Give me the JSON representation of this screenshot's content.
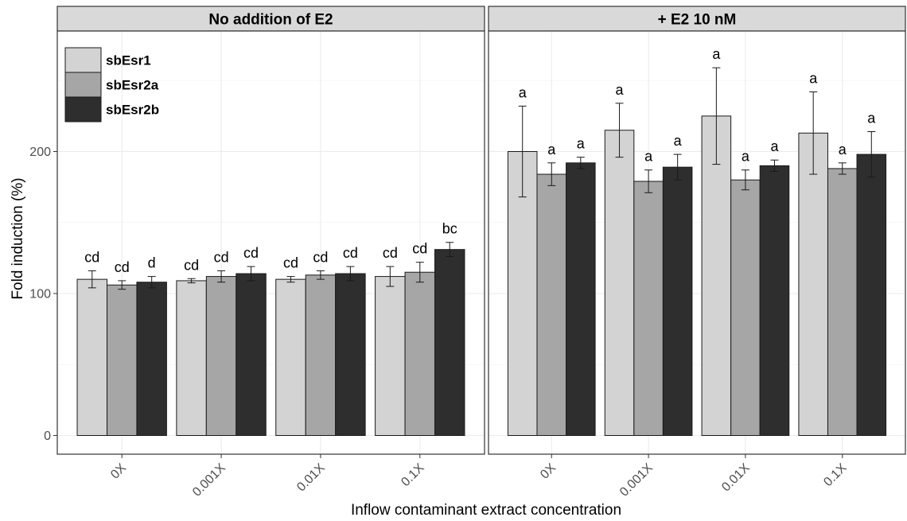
{
  "chart_data": {
    "type": "bar",
    "xlabel": "Inflow contaminant extract concentration",
    "ylabel": "Fold induction (%)",
    "ylim": [
      0,
      290
    ],
    "yticks": [
      0,
      100,
      200
    ],
    "grid": true,
    "legend_position": "top-left",
    "categories": [
      "0X",
      "0.001X",
      "0.01X",
      "0.1X"
    ],
    "series": [
      {
        "name": "sbEsr1",
        "color": "#d3d3d3"
      },
      {
        "name": "sbEsr2a",
        "color": "#a6a6a6"
      },
      {
        "name": "sbEsr2b",
        "color": "#2e2e2e"
      }
    ],
    "panels": [
      {
        "title": "No addition of E2",
        "values": [
          [
            110,
            106,
            108
          ],
          [
            109,
            112,
            114
          ],
          [
            110,
            113,
            114
          ],
          [
            112,
            115,
            131
          ]
        ],
        "errors": [
          [
            6,
            3,
            4
          ],
          [
            1.5,
            4,
            5
          ],
          [
            2,
            3,
            5
          ],
          [
            7,
            7,
            5
          ]
        ],
        "labels": [
          [
            "cd",
            "cd",
            "d"
          ],
          [
            "cd",
            "cd",
            "cd"
          ],
          [
            "cd",
            "cd",
            "cd"
          ],
          [
            "cd",
            "cd",
            "bc"
          ]
        ]
      },
      {
        "title": "+ E2 10 nM",
        "values": [
          [
            200,
            184,
            192
          ],
          [
            215,
            179,
            189
          ],
          [
            225,
            180,
            190
          ],
          [
            213,
            188,
            198
          ]
        ],
        "errors": [
          [
            32,
            8,
            4
          ],
          [
            19,
            8,
            9
          ],
          [
            34,
            7,
            4
          ],
          [
            29,
            4,
            16
          ]
        ],
        "labels": [
          [
            "a",
            "a",
            "a"
          ],
          [
            "a",
            "a",
            "a"
          ],
          [
            "a",
            "a",
            "a"
          ],
          [
            "a",
            "a",
            "a"
          ]
        ]
      }
    ]
  }
}
